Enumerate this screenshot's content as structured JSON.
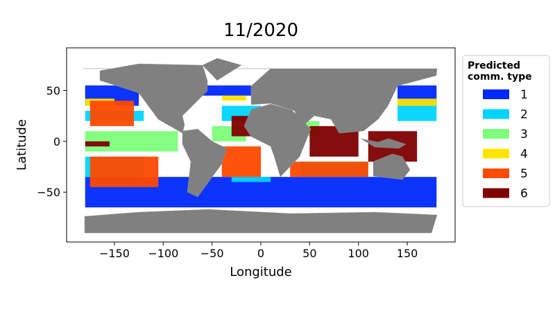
{
  "chart_data": {
    "type": "map",
    "title": "11/2020",
    "x_label": "Longitude",
    "y_label": "Latitude",
    "xlim": [
      -199,
      199
    ],
    "ylim": [
      -99,
      92
    ],
    "xticks": [
      {
        "value": -150,
        "label": "−150"
      },
      {
        "value": -100,
        "label": "−100"
      },
      {
        "value": -50,
        "label": "−50"
      },
      0,
      50,
      100,
      150
    ],
    "yticks": [
      {
        "value": -50,
        "label": "−50"
      },
      0,
      50
    ],
    "legend_title": [
      "Predicted",
      "comm. type"
    ],
    "legend": "outside right",
    "series": [
      {
        "name": "1",
        "color": "#0028ff",
        "regions": [
          [
            -180,
            180,
            -65,
            -35
          ],
          [
            -180,
            -125,
            35,
            55
          ],
          [
            140,
            180,
            35,
            55
          ],
          [
            -60,
            -10,
            45,
            55
          ]
        ]
      },
      {
        "name": "2",
        "color": "#00d4ff",
        "regions": [
          [
            -180,
            -120,
            -35,
            -15
          ],
          [
            -180,
            -120,
            20,
            30
          ],
          [
            140,
            180,
            20,
            35
          ],
          [
            -40,
            0,
            20,
            35
          ],
          [
            40,
            110,
            -35,
            -20
          ],
          [
            -30,
            10,
            -40,
            -35
          ]
        ]
      },
      {
        "name": "3",
        "color": "#7dff7a",
        "regions": [
          [
            -180,
            -85,
            -10,
            10
          ],
          [
            -50,
            -15,
            0,
            15
          ],
          [
            45,
            60,
            5,
            20
          ]
        ]
      },
      {
        "name": "4",
        "color": "#ffe600",
        "regions": [
          [
            -180,
            -150,
            35,
            42
          ],
          [
            140,
            180,
            35,
            42
          ],
          [
            -40,
            -15,
            40,
            45
          ]
        ]
      },
      {
        "name": "5",
        "color": "#ff4a00",
        "regions": [
          [
            -175,
            -105,
            -45,
            -15
          ],
          [
            -175,
            -130,
            15,
            40
          ],
          [
            -40,
            0,
            -35,
            -5
          ],
          [
            30,
            110,
            -35,
            -20
          ]
        ]
      },
      {
        "name": "6",
        "color": "#800000",
        "regions": [
          [
            -30,
            -5,
            5,
            25
          ],
          [
            50,
            100,
            -15,
            15
          ],
          [
            110,
            160,
            -20,
            10
          ],
          [
            -180,
            -155,
            -5,
            0
          ]
        ]
      }
    ]
  }
}
